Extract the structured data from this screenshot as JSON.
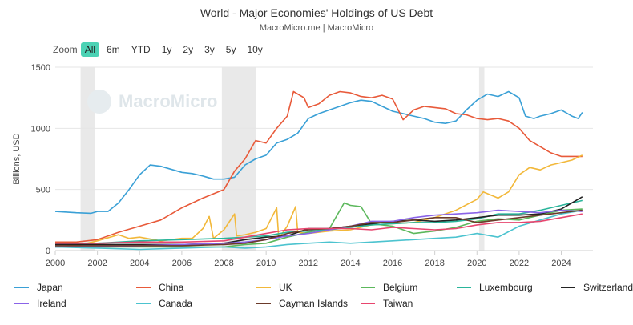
{
  "title": "World - Major Economies' Holdings of US Debt",
  "subtitle": "MacroMicro.me | MacroMicro",
  "watermark": "MacroMicro",
  "zoom": {
    "label": "Zoom",
    "options": [
      "All",
      "6m",
      "YTD",
      "1y",
      "2y",
      "3y",
      "5y",
      "10y"
    ],
    "active": "All"
  },
  "chart_data": {
    "type": "line",
    "title": "World - Major Economies' Holdings of US Debt",
    "ylabel": "Billions, USD",
    "xlabel": "",
    "xlim": [
      2000,
      2025.5
    ],
    "ylim": [
      0,
      1500
    ],
    "x_ticks": [
      "2000",
      "2002",
      "2004",
      "2006",
      "2008",
      "2010",
      "2012",
      "2014",
      "2016",
      "2018",
      "2020",
      "2022",
      "2024"
    ],
    "y_ticks": [
      "0",
      "500",
      "1000",
      "1500"
    ],
    "recession_bands": [
      [
        2001.2,
        2001.9
      ],
      [
        2007.9,
        2009.5
      ],
      [
        2020.1,
        2020.35
      ]
    ],
    "legend_position": "bottom",
    "series": [
      {
        "name": "Japan",
        "color": "#3aa0d6",
        "points": [
          [
            2000,
            320
          ],
          [
            2001,
            310
          ],
          [
            2001.7,
            305
          ],
          [
            2002,
            320
          ],
          [
            2002.5,
            320
          ],
          [
            2003,
            390
          ],
          [
            2003.5,
            500
          ],
          [
            2004,
            620
          ],
          [
            2004.5,
            700
          ],
          [
            2005,
            690
          ],
          [
            2006,
            640
          ],
          [
            2006.5,
            630
          ],
          [
            2007,
            610
          ],
          [
            2007.5,
            585
          ],
          [
            2008,
            585
          ],
          [
            2008.5,
            600
          ],
          [
            2009,
            700
          ],
          [
            2009.5,
            750
          ],
          [
            2010,
            780
          ],
          [
            2010.5,
            880
          ],
          [
            2011,
            910
          ],
          [
            2011.5,
            960
          ],
          [
            2012,
            1080
          ],
          [
            2012.5,
            1120
          ],
          [
            2013,
            1150
          ],
          [
            2013.5,
            1180
          ],
          [
            2014,
            1210
          ],
          [
            2014.5,
            1230
          ],
          [
            2015,
            1220
          ],
          [
            2015.5,
            1180
          ],
          [
            2016,
            1140
          ],
          [
            2016.5,
            1120
          ],
          [
            2017,
            1100
          ],
          [
            2017.5,
            1080
          ],
          [
            2018,
            1050
          ],
          [
            2018.5,
            1040
          ],
          [
            2019,
            1060
          ],
          [
            2019.5,
            1150
          ],
          [
            2020,
            1230
          ],
          [
            2020.5,
            1280
          ],
          [
            2021,
            1260
          ],
          [
            2021.5,
            1300
          ],
          [
            2022,
            1250
          ],
          [
            2022.3,
            1100
          ],
          [
            2022.7,
            1080
          ],
          [
            2023,
            1100
          ],
          [
            2023.5,
            1120
          ],
          [
            2024,
            1150
          ],
          [
            2024.5,
            1100
          ],
          [
            2024.8,
            1080
          ],
          [
            2025,
            1130
          ]
        ]
      },
      {
        "name": "China",
        "color": "#e85a3a",
        "points": [
          [
            2000,
            70
          ],
          [
            2001,
            70
          ],
          [
            2002,
            90
          ],
          [
            2003,
            150
          ],
          [
            2004,
            200
          ],
          [
            2005,
            250
          ],
          [
            2006,
            350
          ],
          [
            2007,
            430
          ],
          [
            2008,
            500
          ],
          [
            2008.5,
            650
          ],
          [
            2009,
            750
          ],
          [
            2009.5,
            900
          ],
          [
            2010,
            880
          ],
          [
            2010.5,
            1000
          ],
          [
            2011,
            1100
          ],
          [
            2011.3,
            1300
          ],
          [
            2011.8,
            1250
          ],
          [
            2012,
            1170
          ],
          [
            2012.5,
            1200
          ],
          [
            2013,
            1270
          ],
          [
            2013.5,
            1300
          ],
          [
            2014,
            1290
          ],
          [
            2014.5,
            1260
          ],
          [
            2015,
            1250
          ],
          [
            2015.5,
            1270
          ],
          [
            2016,
            1240
          ],
          [
            2016.5,
            1070
          ],
          [
            2017,
            1150
          ],
          [
            2017.5,
            1180
          ],
          [
            2018,
            1170
          ],
          [
            2018.5,
            1160
          ],
          [
            2019,
            1120
          ],
          [
            2019.5,
            1110
          ],
          [
            2020,
            1080
          ],
          [
            2020.5,
            1070
          ],
          [
            2021,
            1080
          ],
          [
            2021.5,
            1060
          ],
          [
            2022,
            1000
          ],
          [
            2022.5,
            900
          ],
          [
            2023,
            850
          ],
          [
            2023.5,
            800
          ],
          [
            2024,
            770
          ],
          [
            2024.5,
            770
          ],
          [
            2025,
            770
          ]
        ]
      },
      {
        "name": "UK",
        "color": "#f2b83a",
        "points": [
          [
            2000,
            60
          ],
          [
            2001,
            40
          ],
          [
            2002,
            80
          ],
          [
            2003,
            130
          ],
          [
            2003.5,
            100
          ],
          [
            2004,
            110
          ],
          [
            2005,
            80
          ],
          [
            2006,
            100
          ],
          [
            2006.5,
            100
          ],
          [
            2007,
            180
          ],
          [
            2007.3,
            280
          ],
          [
            2007.5,
            100
          ],
          [
            2008,
            170
          ],
          [
            2008.5,
            300
          ],
          [
            2008.6,
            120
          ],
          [
            2009,
            130
          ],
          [
            2009.5,
            150
          ],
          [
            2010,
            180
          ],
          [
            2010.5,
            350
          ],
          [
            2010.6,
            100
          ],
          [
            2011,
            200
          ],
          [
            2011.4,
            360
          ],
          [
            2011.5,
            150
          ],
          [
            2012,
            140
          ],
          [
            2013,
            160
          ],
          [
            2014,
            170
          ],
          [
            2015,
            210
          ],
          [
            2016,
            220
          ],
          [
            2017,
            230
          ],
          [
            2018,
            270
          ],
          [
            2019,
            330
          ],
          [
            2020,
            420
          ],
          [
            2020.3,
            480
          ],
          [
            2021,
            430
          ],
          [
            2021.5,
            480
          ],
          [
            2022,
            620
          ],
          [
            2022.5,
            680
          ],
          [
            2023,
            660
          ],
          [
            2023.5,
            700
          ],
          [
            2024,
            720
          ],
          [
            2024.5,
            740
          ],
          [
            2025,
            780
          ]
        ]
      },
      {
        "name": "Belgium",
        "color": "#5cb85c",
        "points": [
          [
            2000,
            30
          ],
          [
            2002,
            30
          ],
          [
            2004,
            30
          ],
          [
            2006,
            30
          ],
          [
            2008,
            30
          ],
          [
            2009,
            50
          ],
          [
            2010,
            60
          ],
          [
            2011,
            110
          ],
          [
            2012,
            150
          ],
          [
            2013,
            180
          ],
          [
            2013.7,
            390
          ],
          [
            2014,
            370
          ],
          [
            2014.5,
            360
          ],
          [
            2015,
            220
          ],
          [
            2016,
            200
          ],
          [
            2017,
            140
          ],
          [
            2018,
            160
          ],
          [
            2019,
            190
          ],
          [
            2020,
            240
          ],
          [
            2021,
            260
          ],
          [
            2022,
            250
          ],
          [
            2023,
            290
          ],
          [
            2024,
            330
          ],
          [
            2025,
            340
          ]
        ]
      },
      {
        "name": "Luxembourg",
        "color": "#2ab59b",
        "points": [
          [
            2000,
            50
          ],
          [
            2002,
            60
          ],
          [
            2004,
            80
          ],
          [
            2006,
            90
          ],
          [
            2008,
            100
          ],
          [
            2009,
            110
          ],
          [
            2010,
            120
          ],
          [
            2011,
            150
          ],
          [
            2012,
            160
          ],
          [
            2013,
            170
          ],
          [
            2014,
            190
          ],
          [
            2015,
            210
          ],
          [
            2016,
            220
          ],
          [
            2017,
            230
          ],
          [
            2018,
            230
          ],
          [
            2019,
            240
          ],
          [
            2020,
            260
          ],
          [
            2021,
            300
          ],
          [
            2022,
            300
          ],
          [
            2023,
            330
          ],
          [
            2024,
            370
          ],
          [
            2025,
            410
          ]
        ]
      },
      {
        "name": "Switzerland",
        "color": "#222222",
        "points": [
          [
            2000,
            50
          ],
          [
            2002,
            50
          ],
          [
            2004,
            50
          ],
          [
            2006,
            50
          ],
          [
            2008,
            60
          ],
          [
            2009,
            90
          ],
          [
            2010,
            110
          ],
          [
            2011,
            120
          ],
          [
            2012,
            180
          ],
          [
            2013,
            180
          ],
          [
            2014,
            200
          ],
          [
            2015,
            220
          ],
          [
            2016,
            240
          ],
          [
            2017,
            250
          ],
          [
            2018,
            240
          ],
          [
            2019,
            250
          ],
          [
            2020,
            270
          ],
          [
            2021,
            290
          ],
          [
            2022,
            290
          ],
          [
            2023,
            300
          ],
          [
            2024,
            340
          ],
          [
            2025,
            440
          ]
        ]
      },
      {
        "name": "Ireland",
        "color": "#8a63e8",
        "points": [
          [
            2000,
            30
          ],
          [
            2002,
            30
          ],
          [
            2004,
            40
          ],
          [
            2006,
            50
          ],
          [
            2008,
            60
          ],
          [
            2009,
            70
          ],
          [
            2010,
            90
          ],
          [
            2011,
            120
          ],
          [
            2012,
            140
          ],
          [
            2013,
            170
          ],
          [
            2014,
            200
          ],
          [
            2015,
            240
          ],
          [
            2016,
            240
          ],
          [
            2017,
            270
          ],
          [
            2018,
            290
          ],
          [
            2019,
            300
          ],
          [
            2020,
            310
          ],
          [
            2021,
            330
          ],
          [
            2022,
            320
          ],
          [
            2023,
            310
          ],
          [
            2024,
            330
          ],
          [
            2025,
            320
          ]
        ]
      },
      {
        "name": "Canada",
        "color": "#4cc3cf",
        "points": [
          [
            2000,
            30
          ],
          [
            2002,
            20
          ],
          [
            2004,
            10
          ],
          [
            2006,
            20
          ],
          [
            2008,
            30
          ],
          [
            2009,
            20
          ],
          [
            2010,
            30
          ],
          [
            2011,
            50
          ],
          [
            2012,
            60
          ],
          [
            2013,
            70
          ],
          [
            2014,
            60
          ],
          [
            2015,
            70
          ],
          [
            2016,
            80
          ],
          [
            2017,
            90
          ],
          [
            2018,
            100
          ],
          [
            2019,
            110
          ],
          [
            2020,
            140
          ],
          [
            2021,
            110
          ],
          [
            2022,
            200
          ],
          [
            2023,
            250
          ],
          [
            2024,
            300
          ],
          [
            2025,
            330
          ]
        ]
      },
      {
        "name": "Cayman Islands",
        "color": "#6b3a2a",
        "points": [
          [
            2000,
            40
          ],
          [
            2002,
            40
          ],
          [
            2004,
            40
          ],
          [
            2006,
            40
          ],
          [
            2008,
            50
          ],
          [
            2009,
            60
          ],
          [
            2010,
            90
          ],
          [
            2011,
            140
          ],
          [
            2012,
            170
          ],
          [
            2013,
            180
          ],
          [
            2014,
            200
          ],
          [
            2015,
            230
          ],
          [
            2016,
            230
          ],
          [
            2017,
            250
          ],
          [
            2018,
            270
          ],
          [
            2019,
            270
          ],
          [
            2020,
            230
          ],
          [
            2021,
            250
          ],
          [
            2022,
            270
          ],
          [
            2023,
            290
          ],
          [
            2024,
            310
          ],
          [
            2025,
            330
          ]
        ]
      },
      {
        "name": "Taiwan",
        "color": "#e8456e",
        "points": [
          [
            2000,
            60
          ],
          [
            2002,
            60
          ],
          [
            2004,
            70
          ],
          [
            2006,
            70
          ],
          [
            2008,
            80
          ],
          [
            2009,
            110
          ],
          [
            2010,
            140
          ],
          [
            2011,
            170
          ],
          [
            2012,
            180
          ],
          [
            2013,
            180
          ],
          [
            2014,
            180
          ],
          [
            2015,
            170
          ],
          [
            2016,
            190
          ],
          [
            2017,
            180
          ],
          [
            2018,
            170
          ],
          [
            2019,
            180
          ],
          [
            2020,
            210
          ],
          [
            2021,
            230
          ],
          [
            2022,
            230
          ],
          [
            2023,
            240
          ],
          [
            2024,
            270
          ],
          [
            2025,
            300
          ]
        ]
      }
    ]
  }
}
